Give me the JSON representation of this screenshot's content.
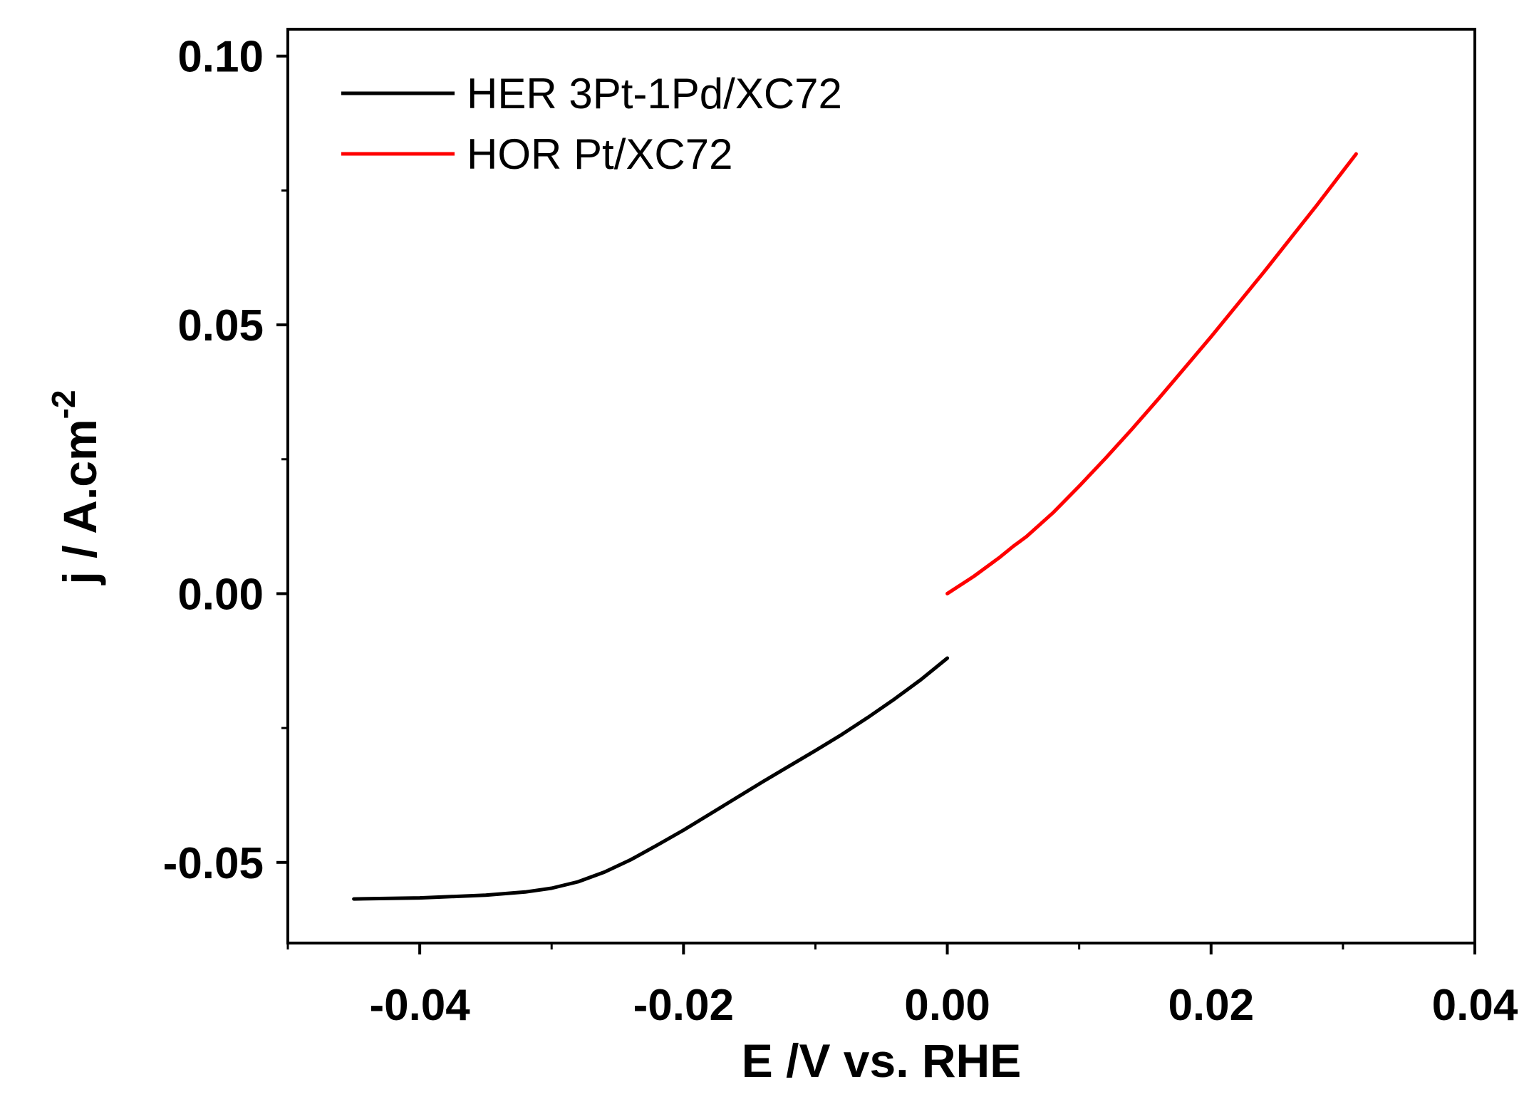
{
  "chart_data": {
    "type": "line",
    "title": "",
    "xlabel": "E /V vs. RHE",
    "ylabel": "j / A.cm",
    "ylabel_superscript": "-2",
    "xlim": [
      -0.05,
      0.04
    ],
    "ylim": [
      -0.065,
      0.105
    ],
    "x_ticks": [
      -0.04,
      -0.02,
      0.0,
      0.02,
      0.04
    ],
    "x_tick_labels": [
      "-0.04",
      "-0.02",
      "0.00",
      "0.02",
      "0.04"
    ],
    "x_minor_ticks": [
      -0.05,
      -0.03,
      -0.01,
      0.01,
      0.03
    ],
    "y_ticks": [
      -0.05,
      0.0,
      0.05,
      0.1
    ],
    "y_tick_labels": [
      "-0.05",
      "0.00",
      "0.05",
      "0.10"
    ],
    "y_minor_ticks": [
      -0.025,
      0.025,
      0.075
    ],
    "grid": false,
    "legend_position": "top-left",
    "series": [
      {
        "name": "HER 3Pt-1Pd/XC72",
        "color": "#000000",
        "x": [
          -0.045,
          -0.04,
          -0.035,
          -0.032,
          -0.03,
          -0.028,
          -0.026,
          -0.024,
          -0.022,
          -0.02,
          -0.018,
          -0.016,
          -0.014,
          -0.012,
          -0.01,
          -0.008,
          -0.006,
          -0.004,
          -0.002,
          0.0
        ],
        "y": [
          -0.0568,
          -0.0566,
          -0.0561,
          -0.0555,
          -0.0548,
          -0.0536,
          -0.0518,
          -0.0495,
          -0.0468,
          -0.044,
          -0.041,
          -0.038,
          -0.035,
          -0.0321,
          -0.0292,
          -0.0262,
          -0.023,
          -0.0196,
          -0.016,
          -0.012
        ]
      },
      {
        "name": "HOR Pt/XC72",
        "color": "#ff0000",
        "x": [
          0.0,
          0.002,
          0.004,
          0.005,
          0.006,
          0.008,
          0.01,
          0.012,
          0.014,
          0.016,
          0.018,
          0.02,
          0.022,
          0.024,
          0.026,
          0.028,
          0.03,
          0.031
        ],
        "y": [
          0.0,
          0.0032,
          0.0068,
          0.0088,
          0.0106,
          0.015,
          0.02,
          0.0252,
          0.0306,
          0.0362,
          0.042,
          0.0478,
          0.0538,
          0.0598,
          0.066,
          0.0722,
          0.0786,
          0.0818
        ]
      }
    ]
  }
}
